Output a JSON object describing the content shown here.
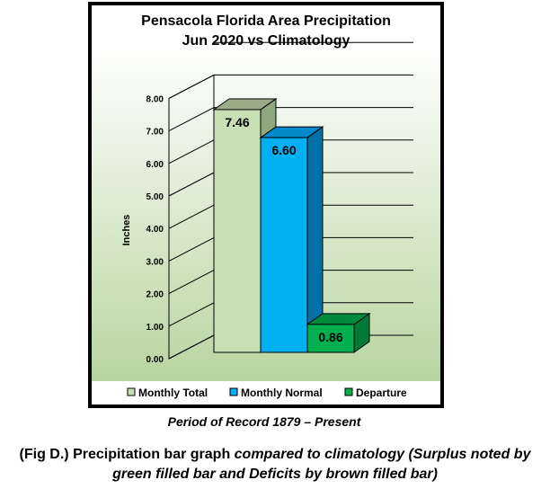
{
  "chart_data": {
    "type": "bar",
    "title": [
      "Pensacola Florida Area Precipitation",
      "Jun 2020 vs Climatology"
    ],
    "ylabel": "Inches",
    "xlabel": "",
    "ylim": [
      0,
      8
    ],
    "yticks": [
      "0.00",
      "1.00",
      "2.00",
      "3.00",
      "4.00",
      "5.00",
      "6.00",
      "7.00",
      "8.00"
    ],
    "grid": true,
    "legend_position": "bottom",
    "series": [
      {
        "name": "Monthly Total",
        "value": 7.46,
        "label": "7.46",
        "color": "#c6e0b4",
        "side": "#8fa77e",
        "top": "#9aab88"
      },
      {
        "name": "Monthly Normal",
        "value": 6.6,
        "label": "6.60",
        "color": "#00b0f0",
        "side": "#0070a8",
        "top": "#0088c8"
      },
      {
        "name": "Departure",
        "value": 0.86,
        "label": "0.86",
        "color": "#00b050",
        "side": "#007a36",
        "top": "#008a3e"
      }
    ]
  },
  "period_text": "Period of Record 1879 – Present",
  "caption": {
    "part1": "(Fig D.) Precipitation bar graph ",
    "part2": "compared to climatology (Surplus noted by green filled bar and Deficits by brown filled bar)"
  }
}
